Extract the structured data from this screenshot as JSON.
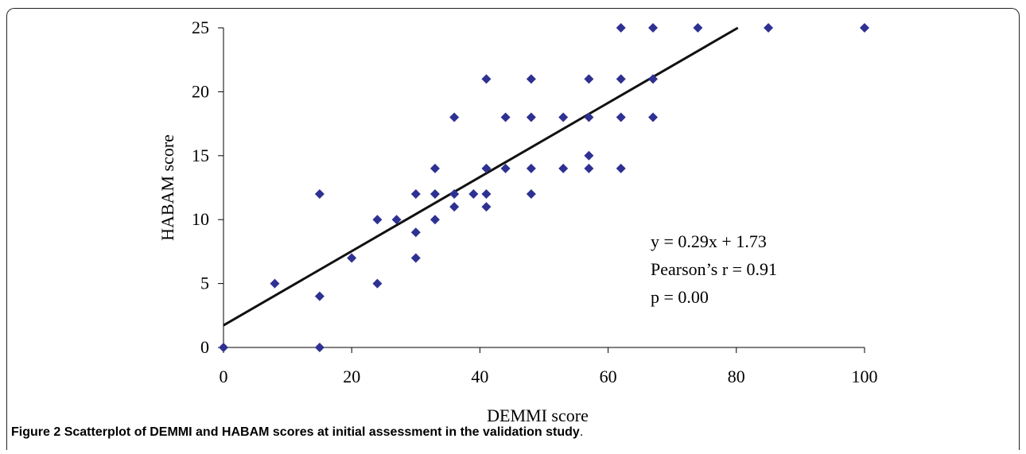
{
  "chart_data": {
    "type": "scatter",
    "xlabel": "DEMMI score",
    "ylabel": "HABAM score",
    "xlim": [
      0,
      100
    ],
    "ylim": [
      0,
      25
    ],
    "xticks": [
      "0",
      "20",
      "40",
      "60",
      "80",
      "100"
    ],
    "yticks": [
      "0",
      "5",
      "10",
      "15",
      "20",
      "25"
    ],
    "grid": false,
    "marker_color": "#2e3192",
    "points": [
      [
        0,
        0
      ],
      [
        8,
        5
      ],
      [
        15,
        0
      ],
      [
        15,
        4
      ],
      [
        15,
        12
      ],
      [
        20,
        7
      ],
      [
        24,
        5
      ],
      [
        24,
        10
      ],
      [
        27,
        10
      ],
      [
        30,
        7
      ],
      [
        30,
        9
      ],
      [
        30,
        12
      ],
      [
        33,
        10
      ],
      [
        33,
        12
      ],
      [
        33,
        14
      ],
      [
        36,
        11
      ],
      [
        36,
        12
      ],
      [
        36,
        18
      ],
      [
        39,
        12
      ],
      [
        41,
        11
      ],
      [
        41,
        12
      ],
      [
        41,
        14
      ],
      [
        41,
        21
      ],
      [
        44,
        14
      ],
      [
        44,
        18
      ],
      [
        48,
        12
      ],
      [
        48,
        14
      ],
      [
        48,
        18
      ],
      [
        48,
        21
      ],
      [
        53,
        14
      ],
      [
        53,
        18
      ],
      [
        57,
        14
      ],
      [
        57,
        15
      ],
      [
        57,
        18
      ],
      [
        57,
        21
      ],
      [
        62,
        14
      ],
      [
        62,
        18
      ],
      [
        62,
        21
      ],
      [
        62,
        25
      ],
      [
        67,
        18
      ],
      [
        67,
        21
      ],
      [
        67,
        25
      ],
      [
        74,
        25
      ],
      [
        85,
        25
      ],
      [
        100,
        25
      ]
    ],
    "trendline": {
      "slope": 0.29,
      "intercept": 1.73
    },
    "annotations": [
      "y = 0.29x + 1.73",
      "Pearson’s r = 0.91",
      "p = 0.00"
    ]
  },
  "caption": {
    "label": "Figure 2",
    "text": "Scatterplot of DEMMI and HABAM scores at initial assessment in the validation study",
    "end": "."
  }
}
